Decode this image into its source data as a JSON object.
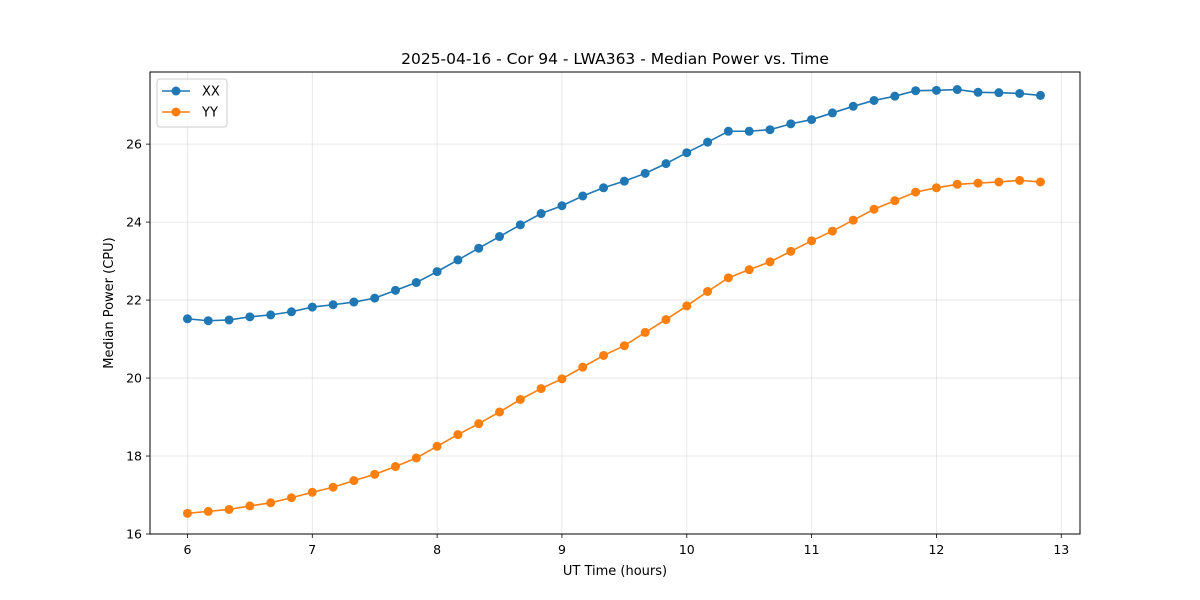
{
  "chart_data": {
    "type": "line",
    "title": "2025-04-16 - Cor 94 - LWA363 - Median Power vs. Time",
    "xlabel": "UT Time (hours)",
    "ylabel": "Median Power (CPU)",
    "xlim": [
      5.7,
      13.15
    ],
    "ylim": [
      16.0,
      27.85
    ],
    "xticks": [
      6,
      7,
      8,
      9,
      10,
      11,
      12,
      13
    ],
    "yticks": [
      16,
      18,
      20,
      22,
      24,
      26
    ],
    "grid": true,
    "legend": "top-left",
    "x": [
      6.0,
      6.1667,
      6.3333,
      6.5,
      6.6667,
      6.8333,
      7.0,
      7.1667,
      7.3333,
      7.5,
      7.6667,
      7.8333,
      8.0,
      8.1667,
      8.3333,
      8.5,
      8.6667,
      8.8333,
      9.0,
      9.1667,
      9.3333,
      9.5,
      9.6667,
      9.8333,
      10.0,
      10.1667,
      10.3333,
      10.5,
      10.6667,
      10.8333,
      11.0,
      11.1667,
      11.3333,
      11.5,
      11.6667,
      11.8333,
      12.0,
      12.1667,
      12.3333,
      12.5,
      12.6667,
      12.8333
    ],
    "series": [
      {
        "name": "XX",
        "color": "#1f77b4",
        "values": [
          21.52,
          21.47,
          21.49,
          21.57,
          21.62,
          21.7,
          21.82,
          21.88,
          21.95,
          22.05,
          22.25,
          22.45,
          22.73,
          23.03,
          23.33,
          23.63,
          23.93,
          24.22,
          24.42,
          24.67,
          24.88,
          25.05,
          25.25,
          25.5,
          25.78,
          26.05,
          26.33,
          26.33,
          26.37,
          26.52,
          26.63,
          26.8,
          26.97,
          27.12,
          27.23,
          27.37,
          27.38,
          27.4,
          27.33,
          27.32,
          27.3,
          27.25
        ]
      },
      {
        "name": "YY",
        "color": "#ff7f0e",
        "values": [
          16.53,
          16.58,
          16.63,
          16.72,
          16.8,
          16.93,
          17.07,
          17.2,
          17.37,
          17.53,
          17.73,
          17.95,
          18.25,
          18.55,
          18.83,
          19.13,
          19.45,
          19.73,
          19.98,
          20.28,
          20.58,
          20.83,
          21.17,
          21.5,
          21.85,
          22.22,
          22.57,
          22.78,
          22.98,
          23.25,
          23.52,
          23.77,
          24.05,
          24.33,
          24.55,
          24.77,
          24.88,
          24.97,
          25.0,
          25.03,
          25.07,
          25.03
        ]
      }
    ]
  }
}
